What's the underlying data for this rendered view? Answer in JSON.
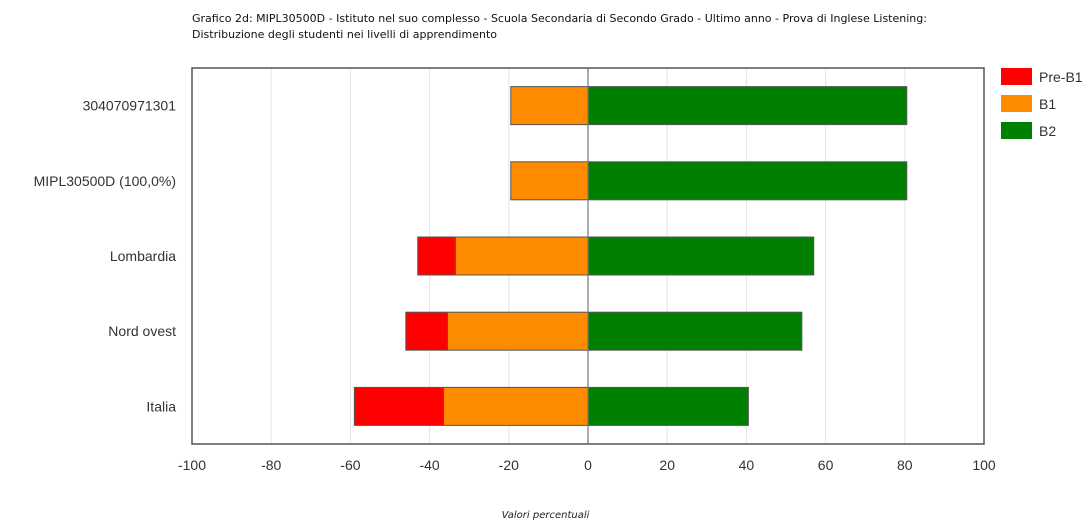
{
  "chart_data": {
    "type": "bar",
    "orientation": "horizontal",
    "stacked": "diverging",
    "title_lines": [
      "Grafico 2d: MIPL30500D - Istituto nel suo complesso - Scuola Secondaria di Secondo Grado - Ultimo anno - Prova di Inglese Listening:",
      "Distribuzione degli studenti nei livelli di apprendimento"
    ],
    "xlabel": "Valori percentuali",
    "xlim": [
      -100,
      100
    ],
    "xticks": [
      -100,
      -80,
      -60,
      -40,
      -20,
      0,
      20,
      40,
      60,
      80,
      100
    ],
    "grid": true,
    "legend_position": "top-right",
    "categories": [
      "304070971301",
      "MIPL30500D (100,0%)",
      "Lombardia",
      "Nord ovest",
      "Italia"
    ],
    "series": [
      {
        "name": "Pre-B1",
        "color": "#ff0000",
        "side": "negative",
        "values": [
          0,
          0,
          9.5,
          10.5,
          22.5
        ]
      },
      {
        "name": "B1",
        "color": "#ff8c00",
        "side": "negative",
        "values": [
          19.5,
          19.5,
          33.5,
          35.5,
          36.5
        ]
      },
      {
        "name": "B2",
        "color": "#008000",
        "side": "positive",
        "values": [
          80.5,
          80.5,
          57,
          54,
          40.5
        ]
      }
    ]
  }
}
